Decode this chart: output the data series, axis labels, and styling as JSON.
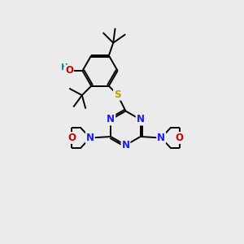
{
  "background_color": "#ebebeb",
  "atom_colors": {
    "C": "#000000",
    "N": "#1a1aff",
    "O": "#cc0000",
    "S": "#b8a000",
    "H": "#008888"
  },
  "bond_color": "#000000",
  "bond_width": 1.4,
  "font_size_atoms": 8.5,
  "font_size_h": 7.5
}
